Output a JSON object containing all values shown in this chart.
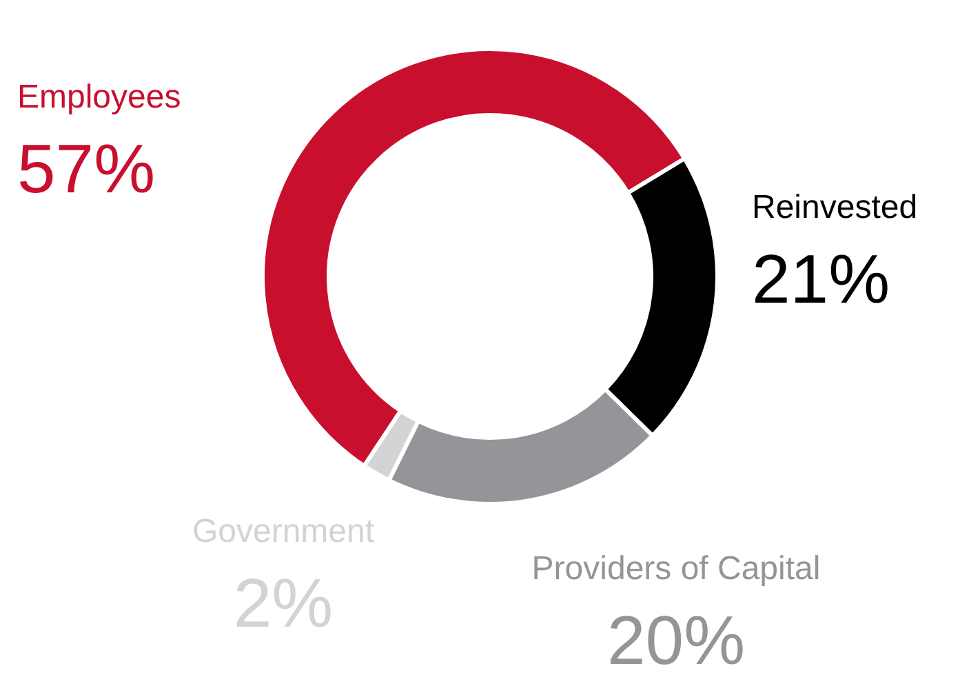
{
  "chart_data": {
    "type": "donut",
    "categories": [
      "Employees",
      "Reinvested",
      "Providers of Capital",
      "Government"
    ],
    "values": [
      57,
      21,
      20,
      2
    ],
    "colors": [
      "#c8102e",
      "#000000",
      "#939598",
      "#d1d3d4"
    ],
    "value_labels": [
      "57%",
      "21%",
      "20%",
      "2%"
    ]
  }
}
